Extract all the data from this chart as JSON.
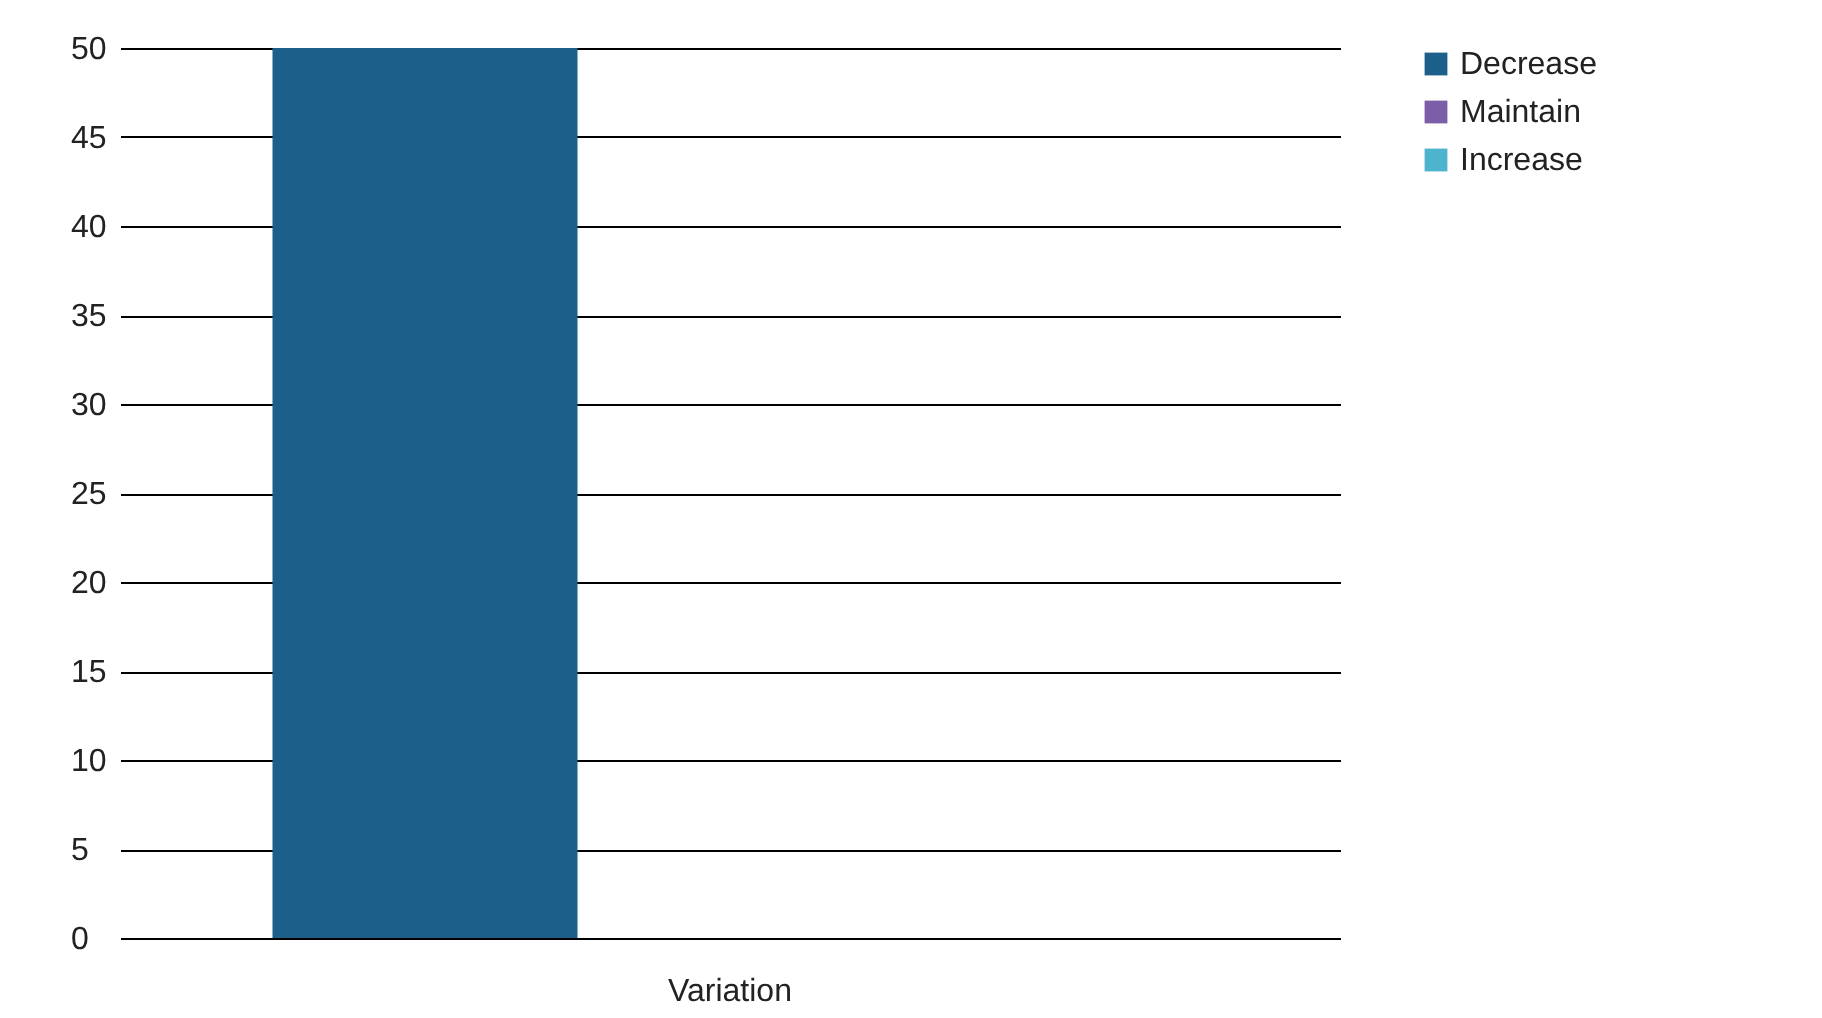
{
  "chart_data": {
    "type": "bar",
    "categories": [
      "Variation"
    ],
    "series": [
      {
        "name": "Decrease",
        "color": "#1b5f8a",
        "values": [
          50
        ]
      },
      {
        "name": "Maintain",
        "color": "#7b5ea7",
        "values": [
          0
        ]
      },
      {
        "name": "Increase",
        "color": "#4eb3cc",
        "values": [
          0
        ]
      }
    ],
    "ylim": [
      0,
      50
    ],
    "yticks": [
      0,
      5,
      10,
      15,
      20,
      25,
      30,
      35,
      40,
      45,
      50
    ],
    "grid": "y",
    "legend": "right"
  }
}
